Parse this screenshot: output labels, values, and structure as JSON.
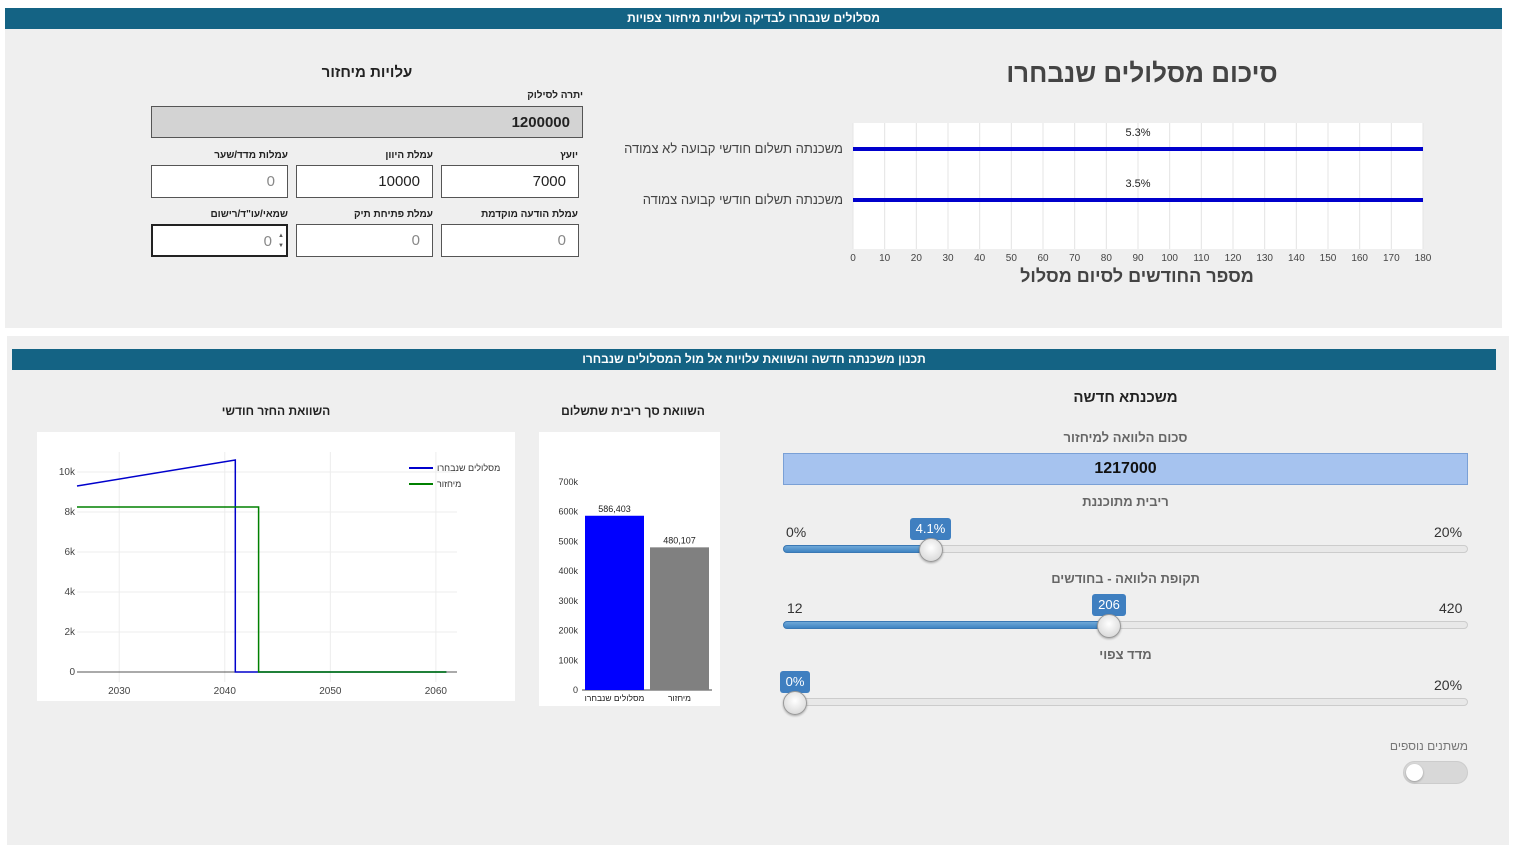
{
  "top_section": {
    "header": "מסלולים שנבחרו לבדיקה ועלויות מיחזור צפויות",
    "summary_chart": {
      "title": "סיכום מסלולים שנבחרו",
      "xlabel": "מספר החודשים לסיום מסלול",
      "ticks": [
        "0",
        "10",
        "20",
        "30",
        "40",
        "50",
        "60",
        "70",
        "80",
        "90",
        "100",
        "110",
        "120",
        "130",
        "140",
        "150",
        "160",
        "170",
        "180"
      ],
      "color": "#0000cc"
    },
    "refi_costs": {
      "title": "עלויות מיחזור",
      "balance_label": "יתרה לסילוק",
      "balance_value": "1200000",
      "advisor_label": "יועץ",
      "advisor_value": "7000",
      "deviation_label": "עמלת היוון",
      "deviation_value": "10000",
      "index_fee_label": "עמלות מדד/שער",
      "index_fee_value": "0",
      "notice_label": "עמלת הודעה מוקדמת",
      "notice_value": "0",
      "file_label": "עמלת פתיחת תיק",
      "file_value": "0",
      "appraiser_label": "שמאי/עו\"ד/רישום",
      "appraiser_value": "0"
    }
  },
  "bottom_section": {
    "header": "תכנון משכנתה חדשה והשוואת עלויות אל מול המסלולים שנבחרו",
    "new_mortgage": {
      "title": "משכנתא חדשה",
      "loan_label": "סכום הלוואה למיחזור",
      "loan_value": "1217000",
      "rate_label": "ריבית מתוכננת",
      "rate_min": "0%",
      "rate_max": "20%",
      "rate_value": "4.1%",
      "rate_fraction": 0.205,
      "period_label": "תקופת הלוואה - בחודשים",
      "period_min": "12",
      "period_max": "420",
      "period_value": "206",
      "period_fraction": 0.475,
      "index_label": "מדד צפוי",
      "index_min": "0%",
      "index_max": "20%",
      "index_value": "0%",
      "index_fraction": 0,
      "more_label": "משתנים נוספים"
    },
    "interest_chart_title": "השוואת סך ריבית שתשלום",
    "monthly_chart_title": "השוואת החזר חודשי"
  },
  "chart_data": [
    {
      "type": "bar",
      "orientation": "horizontal",
      "title": "סיכום מסלולים שנבחרו",
      "xlabel": "מספר החודשים לסיום מסלול",
      "xlim": [
        0,
        180
      ],
      "categories": [
        "משכנתה תשלום חודשי  קבועה לא צמודה",
        "משכנתה תשלום חודשי  קבועה צמודה"
      ],
      "values": [
        180,
        180
      ],
      "data_labels": [
        "5.3%",
        "3.5%"
      ],
      "grid": true
    },
    {
      "type": "bar",
      "title": "השוואת סך ריבית שתשלום",
      "categories": [
        "מסלולים שנבחרו",
        "מיחזור"
      ],
      "values": [
        586403,
        480107
      ],
      "data_labels": [
        "586,403",
        "480,107"
      ],
      "colors": [
        "#0000ff",
        "#808080"
      ],
      "ylim": [
        0,
        700000
      ],
      "yticks": [
        "0",
        "100k",
        "200k",
        "300k",
        "400k",
        "500k",
        "600k",
        "700k"
      ]
    },
    {
      "type": "line",
      "title": "השוואת החזר חודשי",
      "xlim": [
        2026,
        2062
      ],
      "ylim": [
        -500,
        11000
      ],
      "xticks": [
        "2030",
        "2040",
        "2050",
        "2060"
      ],
      "yticks": [
        "0",
        "2k",
        "4k",
        "6k",
        "8k",
        "10k"
      ],
      "legend": "top-right",
      "series": [
        {
          "name": "מסלולים שנבחרו",
          "color": "#0000cc",
          "points": [
            [
              2026,
              9300
            ],
            [
              2041,
              10600
            ],
            [
              2041,
              0
            ],
            [
              2061,
              0
            ]
          ]
        },
        {
          "name": "מיחזור",
          "color": "#008000",
          "points": [
            [
              2026,
              8250
            ],
            [
              2043.2,
              8250
            ],
            [
              2043.2,
              0
            ],
            [
              2061,
              0
            ]
          ]
        }
      ]
    }
  ]
}
